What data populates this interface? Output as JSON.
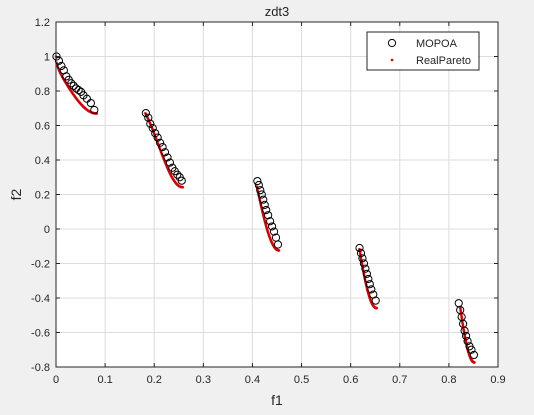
{
  "figure": {
    "background": "#f0f0f0"
  },
  "chart_data": {
    "type": "scatter",
    "title": "zdt3",
    "xlabel": "f1",
    "ylabel": "f2",
    "xlim": [
      0,
      0.9
    ],
    "ylim": [
      -0.8,
      1.2
    ],
    "xticks": [
      0,
      0.1,
      0.2,
      0.3,
      0.4,
      0.5,
      0.6,
      0.7,
      0.8,
      0.9
    ],
    "xtick_labels": [
      "0",
      "0.1",
      "0.2",
      "0.3",
      "0.4",
      "0.5",
      "0.6",
      "0.7",
      "0.8",
      "0.9"
    ],
    "yticks": [
      -0.8,
      -0.6,
      -0.4,
      -0.2,
      0,
      0.2,
      0.4,
      0.6,
      0.8,
      1,
      1.2
    ],
    "ytick_labels": [
      "-0.8",
      "-0.6",
      "-0.4",
      "-0.2",
      "0",
      "0.2",
      "0.4",
      "0.6",
      "0.8",
      "1",
      "1.2"
    ],
    "grid": true,
    "legend_position": "top-right",
    "colors": {
      "real_pareto": "#dd0000",
      "mopoa": "#000000",
      "axes_bg": "#ffffff",
      "grid": "#dcdcdc",
      "text": "#262626"
    },
    "series": [
      {
        "name": "MOPOA",
        "marker": "open-circle",
        "points": [
          [
            0.001,
            1.0
          ],
          [
            0.006,
            0.975
          ],
          [
            0.011,
            0.945
          ],
          [
            0.016,
            0.92
          ],
          [
            0.021,
            0.885
          ],
          [
            0.026,
            0.865
          ],
          [
            0.031,
            0.845
          ],
          [
            0.036,
            0.83
          ],
          [
            0.041,
            0.815
          ],
          [
            0.046,
            0.805
          ],
          [
            0.051,
            0.795
          ],
          [
            0.056,
            0.775
          ],
          [
            0.063,
            0.755
          ],
          [
            0.071,
            0.73
          ],
          [
            0.078,
            0.69
          ],
          [
            0.183,
            0.672
          ],
          [
            0.188,
            0.645
          ],
          [
            0.192,
            0.61
          ],
          [
            0.197,
            0.585
          ],
          [
            0.202,
            0.555
          ],
          [
            0.207,
            0.53
          ],
          [
            0.212,
            0.5
          ],
          [
            0.217,
            0.475
          ],
          [
            0.222,
            0.445
          ],
          [
            0.227,
            0.415
          ],
          [
            0.232,
            0.385
          ],
          [
            0.237,
            0.355
          ],
          [
            0.242,
            0.335
          ],
          [
            0.247,
            0.315
          ],
          [
            0.252,
            0.3
          ],
          [
            0.256,
            0.28
          ],
          [
            0.41,
            0.278
          ],
          [
            0.413,
            0.255
          ],
          [
            0.416,
            0.225
          ],
          [
            0.419,
            0.2
          ],
          [
            0.422,
            0.17
          ],
          [
            0.425,
            0.14
          ],
          [
            0.428,
            0.11
          ],
          [
            0.432,
            0.08
          ],
          [
            0.436,
            0.045
          ],
          [
            0.44,
            0.015
          ],
          [
            0.444,
            -0.015
          ],
          [
            0.448,
            -0.05
          ],
          [
            0.452,
            -0.09
          ],
          [
            0.618,
            -0.11
          ],
          [
            0.621,
            -0.14
          ],
          [
            0.624,
            -0.17
          ],
          [
            0.627,
            -0.2
          ],
          [
            0.63,
            -0.23
          ],
          [
            0.633,
            -0.26
          ],
          [
            0.636,
            -0.29
          ],
          [
            0.639,
            -0.32
          ],
          [
            0.642,
            -0.35
          ],
          [
            0.646,
            -0.38
          ],
          [
            0.651,
            -0.415
          ],
          [
            0.82,
            -0.43
          ],
          [
            0.823,
            -0.47
          ],
          [
            0.826,
            -0.51
          ],
          [
            0.829,
            -0.55
          ],
          [
            0.832,
            -0.59
          ],
          [
            0.835,
            -0.62
          ],
          [
            0.838,
            -0.65
          ],
          [
            0.842,
            -0.68
          ],
          [
            0.846,
            -0.7
          ],
          [
            0.851,
            -0.73
          ]
        ]
      },
      {
        "name": "RealPareto",
        "marker": "dot",
        "segments": [
          {
            "x_from": 0.0,
            "x_to": 0.083
          },
          {
            "x_from": 0.182,
            "x_to": 0.258
          },
          {
            "x_from": 0.409,
            "x_to": 0.454
          },
          {
            "x_from": 0.618,
            "x_to": 0.653
          },
          {
            "x_from": 0.823,
            "x_to": 0.852
          }
        ],
        "points_per_segment": 60
      }
    ]
  }
}
